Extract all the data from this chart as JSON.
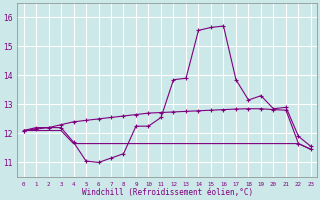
{
  "x": [
    0,
    1,
    2,
    3,
    4,
    5,
    6,
    7,
    8,
    9,
    10,
    11,
    12,
    13,
    14,
    15,
    16,
    17,
    18,
    19,
    20,
    21,
    22,
    23
  ],
  "line1": [
    12.1,
    12.2,
    12.2,
    12.2,
    11.7,
    11.05,
    11.0,
    11.15,
    11.3,
    12.25,
    12.25,
    12.55,
    13.85,
    13.9,
    15.55,
    15.65,
    15.7,
    13.85,
    13.15,
    13.3,
    12.85,
    12.9,
    11.9,
    11.55
  ],
  "line2": [
    12.1,
    12.15,
    12.2,
    12.3,
    12.4,
    12.45,
    12.5,
    12.55,
    12.6,
    12.65,
    12.7,
    12.72,
    12.74,
    12.76,
    12.78,
    12.8,
    12.82,
    12.84,
    12.85,
    12.85,
    12.82,
    12.8,
    11.65,
    11.45
  ],
  "line3": [
    12.1,
    12.1,
    12.1,
    12.1,
    11.65,
    11.65,
    11.65,
    11.65,
    11.65,
    11.65,
    11.65,
    11.65,
    11.65,
    11.65,
    11.65,
    11.65,
    11.65,
    11.65,
    11.65,
    11.65,
    11.65,
    11.65,
    11.65,
    11.45
  ],
  "line_color": "#800080",
  "bg_color": "#cce8e8",
  "grid_color": "#b0d4d4",
  "ylim": [
    10.5,
    16.5
  ],
  "xlim": [
    -0.5,
    23.5
  ],
  "yticks": [
    11,
    12,
    13,
    14,
    15,
    16
  ],
  "xticks": [
    0,
    1,
    2,
    3,
    4,
    5,
    6,
    7,
    8,
    9,
    10,
    11,
    12,
    13,
    14,
    15,
    16,
    17,
    18,
    19,
    20,
    21,
    22,
    23
  ],
  "xlabel": "Windchill (Refroidissement éolien,°C)",
  "font_color": "#800080"
}
